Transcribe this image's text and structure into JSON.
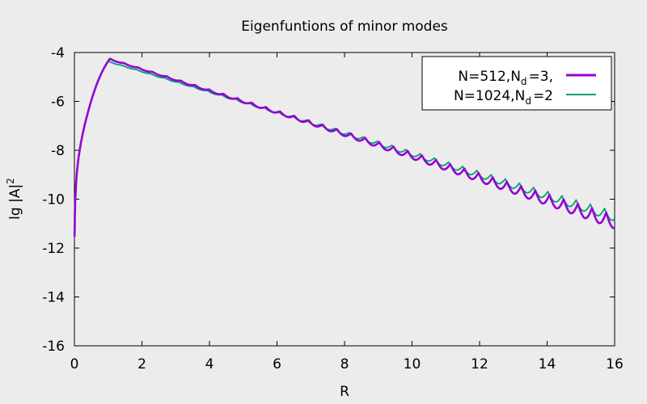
{
  "chart_data": {
    "type": "line",
    "title": "Eigenfuntions of minor modes",
    "xlabel": "R",
    "ylabel": "lg |A|",
    "ylabel_sup": "2",
    "xlim": [
      0,
      16
    ],
    "ylim": [
      -16,
      -4
    ],
    "xticks": [
      0,
      2,
      4,
      6,
      8,
      10,
      12,
      14,
      16
    ],
    "yticks": [
      -16,
      -14,
      -12,
      -10,
      -8,
      -6,
      -4
    ],
    "grid": false,
    "legend_placement": "top-right",
    "series": [
      {
        "name_parts": [
          "N=512,N",
          "d",
          "=3,"
        ],
        "color": "#9400d3",
        "peak": {
          "x": 1.05,
          "y": -4.25
        },
        "tail": {
          "x": 16,
          "y": -10.65
        },
        "ripple_amplitude_start": 0.04,
        "ripple_amplitude_end": 0.55,
        "ripple_period": 0.42
      },
      {
        "name_parts": [
          "N=1024,N",
          "d",
          "=2"
        ],
        "color": "#009e73",
        "peak": {
          "x": 1.0,
          "y": -4.35
        },
        "tail": {
          "x": 16,
          "y": -10.5
        },
        "ripple_amplitude_start": 0.03,
        "ripple_amplitude_end": 0.4,
        "ripple_period": 0.42
      }
    ]
  }
}
